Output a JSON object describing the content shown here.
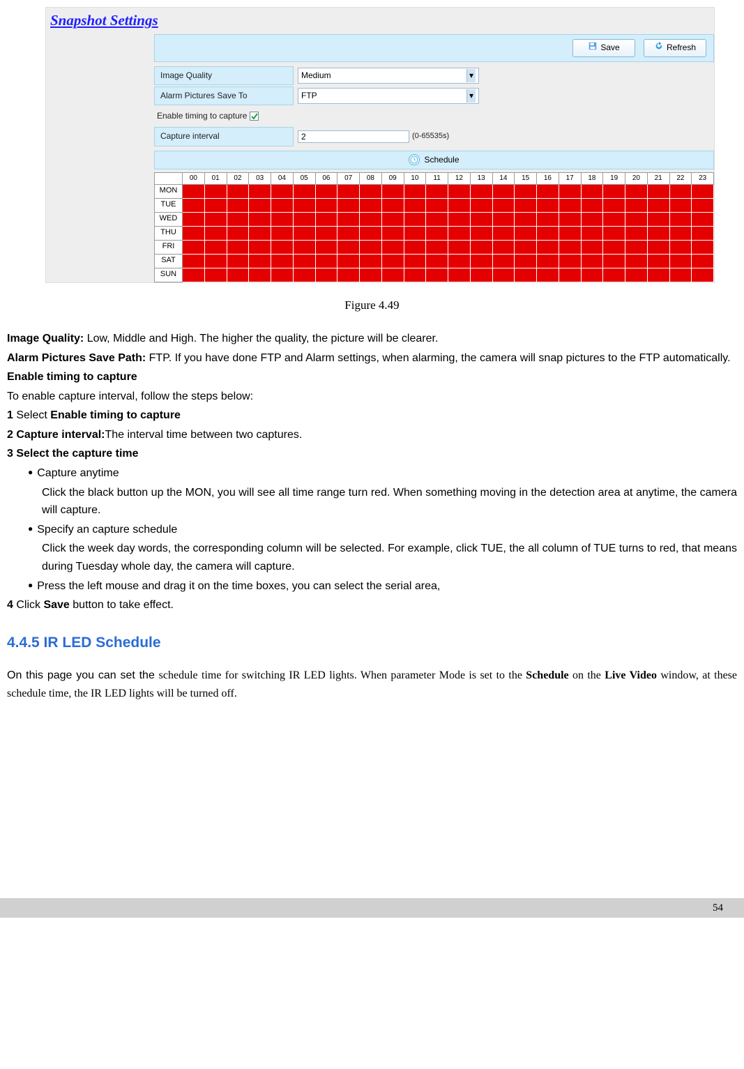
{
  "screenshot": {
    "title": "Snapshot Settings",
    "buttons": {
      "save": "Save",
      "refresh": "Refresh"
    },
    "rows": {
      "image_quality": {
        "label": "Image Quality",
        "value": "Medium"
      },
      "save_to": {
        "label": "Alarm Pictures Save To",
        "value": "FTP"
      },
      "enable_timing": {
        "label": "Enable timing to capture",
        "checked": true
      },
      "capture_interval": {
        "label": "Capture interval",
        "value": "2",
        "hint": "(0-65535s)"
      }
    },
    "schedule_label": "Schedule",
    "hours": [
      "00",
      "01",
      "02",
      "03",
      "04",
      "05",
      "06",
      "07",
      "08",
      "09",
      "10",
      "11",
      "12",
      "13",
      "14",
      "15",
      "16",
      "17",
      "18",
      "19",
      "20",
      "21",
      "22",
      "23"
    ],
    "days": [
      "MON",
      "TUE",
      "WED",
      "THU",
      "FRI",
      "SAT",
      "SUN"
    ],
    "cell_color": "#E40000"
  },
  "figure_caption": "Figure 4.49",
  "text": {
    "p1a": "Image Quality: ",
    "p1b": "Low, Middle and High. The higher the quality, the picture will be clearer.",
    "p2a": "Alarm Pictures Save Path: ",
    "p2b": "FTP. If you have done FTP and Alarm settings, when alarming, the camera will snap pictures to the FTP automatically.",
    "p3": "Enable timing to capture",
    "p4": "To enable capture interval, follow the steps below:",
    "p5a": "1 ",
    "p5b": "Select ",
    "p5c": "Enable timing to capture",
    "p6a": "2 Capture interval:",
    "p6b": "The interval time between two captures.",
    "p7": "3 Select the capture time",
    "b1": "Capture anytime",
    "b1d": "Click the black button up the MON, you will see all time range turn red. When something moving in the detection area at anytime, the camera will capture.",
    "b2": "Specify an capture schedule",
    "b2d": "Click the week day words, the corresponding column will be selected. For example, click TUE, the all column of TUE turns to red, that means during Tuesday whole day, the camera will capture.",
    "b3": "Press the left mouse and drag it on the time boxes, you can select the serial area,",
    "p8a": "4 ",
    "p8b": "Click ",
    "p8c": "Save",
    "p8d": " button to take effect.",
    "sec": "4.4.5 IR LED Schedule",
    "p9a": "On this page you can set the ",
    "p9b": "schedule time for switching IR LED lights. When parameter Mode is set to the ",
    "p9c": "Schedule",
    "p9d": " on the ",
    "p9e": "Live Video",
    "p9f": " window, at these schedule time, the IR LED lights will be turned off."
  },
  "page_number": "54"
}
